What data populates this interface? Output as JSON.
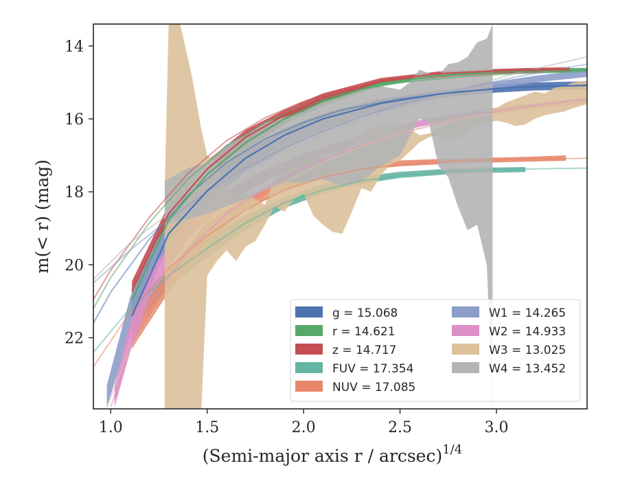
{
  "chart_data": {
    "type": "line",
    "xlabel": "(Semi-major axis r / arcsec)",
    "xlabel_superscript": "1/4",
    "ylabel": "m(< r) (mag)",
    "xlim": [
      0.91,
      3.47
    ],
    "ylim": [
      23.95,
      13.4
    ],
    "y_inverted": true,
    "x_ticks": [
      1.0,
      1.5,
      2.0,
      2.5,
      3.0
    ],
    "x_tick_labels": [
      "1.0",
      "1.5",
      "2.0",
      "2.5",
      "3.0"
    ],
    "y_ticks": [
      14,
      16,
      18,
      20,
      22
    ],
    "y_tick_labels": [
      "14",
      "16",
      "18",
      "20",
      "22"
    ],
    "grid": false,
    "legend": {
      "placement": "lower-right",
      "columns": 2
    },
    "series": [
      {
        "name": "g",
        "legend": "g = 15.068",
        "color": "#4c72b0",
        "fit": [
          [
            0.91,
            21.6
          ],
          [
            1.0,
            20.75
          ],
          [
            1.2,
            19.3
          ],
          [
            1.4,
            18.1
          ],
          [
            1.6,
            17.2
          ],
          [
            1.8,
            16.55
          ],
          [
            2.0,
            16.1
          ],
          [
            2.2,
            15.75
          ],
          [
            2.5,
            15.45
          ],
          [
            2.8,
            15.25
          ],
          [
            3.1,
            15.15
          ],
          [
            3.47,
            15.07
          ]
        ],
        "band": [
          [
            1.11,
            21.7,
            21.1
          ],
          [
            1.3,
            19.45,
            18.85
          ],
          [
            1.5,
            18.25,
            17.7
          ],
          [
            1.7,
            17.3,
            16.85
          ],
          [
            1.9,
            16.65,
            16.25
          ],
          [
            2.1,
            16.15,
            15.85
          ],
          [
            2.4,
            15.7,
            15.45
          ],
          [
            2.7,
            15.42,
            15.22
          ],
          [
            3.0,
            15.28,
            15.05
          ],
          [
            3.2,
            15.22,
            15.0
          ],
          [
            3.47,
            15.2,
            14.97
          ]
        ]
      },
      {
        "name": "r",
        "legend": "r = 14.621",
        "color": "#55a868",
        "fit": [
          [
            0.91,
            21.2
          ],
          [
            1.0,
            20.35
          ],
          [
            1.2,
            18.85
          ],
          [
            1.4,
            17.65
          ],
          [
            1.6,
            16.75
          ],
          [
            1.8,
            16.1
          ],
          [
            2.0,
            15.65
          ],
          [
            2.2,
            15.3
          ],
          [
            2.5,
            15.0
          ],
          [
            2.8,
            14.85
          ],
          [
            3.1,
            14.76
          ],
          [
            3.47,
            14.7
          ]
        ],
        "band": [
          [
            1.11,
            21.25,
            20.7
          ],
          [
            1.3,
            19.05,
            18.5
          ],
          [
            1.5,
            17.75,
            17.3
          ],
          [
            1.7,
            16.85,
            16.45
          ],
          [
            1.9,
            16.15,
            15.85
          ],
          [
            2.1,
            15.65,
            15.4
          ],
          [
            2.4,
            15.1,
            14.95
          ],
          [
            2.7,
            14.88,
            14.75
          ],
          [
            3.0,
            14.77,
            14.65
          ],
          [
            3.2,
            14.74,
            14.62
          ],
          [
            3.47,
            14.72,
            14.6
          ]
        ]
      },
      {
        "name": "z",
        "legend": "z = 14.717",
        "color": "#c44e52",
        "fit": [
          [
            0.91,
            20.95
          ],
          [
            1.0,
            20.15
          ],
          [
            1.2,
            18.7
          ],
          [
            1.4,
            17.5
          ],
          [
            1.6,
            16.6
          ],
          [
            1.8,
            15.97
          ],
          [
            2.0,
            15.52
          ],
          [
            2.2,
            15.2
          ],
          [
            2.5,
            14.93
          ],
          [
            2.8,
            14.8
          ],
          [
            3.1,
            14.73
          ],
          [
            3.38,
            14.67
          ]
        ],
        "band": [
          [
            1.11,
            21.0,
            20.45
          ],
          [
            1.3,
            18.85,
            18.35
          ],
          [
            1.5,
            17.6,
            17.15
          ],
          [
            1.7,
            16.7,
            16.3
          ],
          [
            1.9,
            16.05,
            15.75
          ],
          [
            2.1,
            15.55,
            15.3
          ],
          [
            2.4,
            15.02,
            14.88
          ],
          [
            2.7,
            14.82,
            14.7
          ],
          [
            3.0,
            14.74,
            14.63
          ],
          [
            3.2,
            14.71,
            14.6
          ],
          [
            3.38,
            14.7,
            14.58
          ]
        ]
      },
      {
        "name": "FUV",
        "legend": "FUV = 17.354",
        "color": "#64b5a1",
        "fit": [
          [
            0.91,
            22.4
          ],
          [
            1.1,
            21.2
          ],
          [
            1.3,
            20.3
          ],
          [
            1.5,
            19.55
          ],
          [
            1.7,
            18.85
          ],
          [
            1.9,
            18.3
          ],
          [
            2.1,
            17.95
          ],
          [
            2.3,
            17.7
          ],
          [
            2.5,
            17.55
          ],
          [
            2.8,
            17.43
          ],
          [
            3.1,
            17.38
          ],
          [
            3.47,
            17.35
          ]
        ],
        "band": [
          [
            1.11,
            21.8,
            21.1
          ],
          [
            1.3,
            20.6,
            20.1
          ],
          [
            1.5,
            19.8,
            19.3
          ],
          [
            1.7,
            19.05,
            18.65
          ],
          [
            1.9,
            18.45,
            18.15
          ],
          [
            2.1,
            18.05,
            17.8
          ],
          [
            2.3,
            17.78,
            17.58
          ],
          [
            2.5,
            17.62,
            17.45
          ],
          [
            2.8,
            17.5,
            17.35
          ],
          [
            3.15,
            17.46,
            17.32
          ]
        ]
      },
      {
        "name": "NUV",
        "legend": "NUV = 17.085",
        "color": "#e8866a",
        "fit": [
          [
            0.91,
            22.8
          ],
          [
            1.1,
            21.3
          ],
          [
            1.3,
            20.1
          ],
          [
            1.5,
            19.2
          ],
          [
            1.7,
            18.5
          ],
          [
            1.9,
            17.95
          ],
          [
            2.1,
            17.6
          ],
          [
            2.3,
            17.38
          ],
          [
            2.5,
            17.25
          ],
          [
            2.8,
            17.15
          ],
          [
            3.1,
            17.1
          ],
          [
            3.47,
            17.08
          ]
        ],
        "band": [
          [
            1.11,
            22.3,
            21.6
          ],
          [
            1.3,
            20.75,
            20.15
          ],
          [
            1.5,
            19.35,
            18.85
          ],
          [
            1.7,
            18.5,
            18.15
          ],
          [
            1.9,
            17.95,
            17.7
          ],
          [
            2.1,
            17.6,
            17.4
          ],
          [
            2.3,
            17.4,
            17.22
          ],
          [
            2.5,
            17.3,
            17.14
          ],
          [
            2.8,
            17.22,
            17.08
          ],
          [
            3.1,
            17.18,
            17.05
          ],
          [
            3.36,
            17.15,
            17.0
          ]
        ]
      },
      {
        "name": "W1",
        "legend": "W1 = 14.265",
        "color": "#8c9dc8",
        "fit": [
          [
            0.91,
            20.5
          ],
          [
            1.1,
            19.6
          ],
          [
            1.3,
            18.75
          ],
          [
            1.5,
            18.0
          ],
          [
            1.7,
            17.35
          ],
          [
            1.9,
            16.8
          ],
          [
            2.1,
            16.35
          ],
          [
            2.3,
            15.95
          ],
          [
            2.5,
            15.6
          ],
          [
            2.8,
            15.2
          ],
          [
            3.1,
            14.85
          ],
          [
            3.47,
            14.5
          ]
        ],
        "band": [
          [
            0.98,
            23.9,
            23.3
          ],
          [
            1.1,
            21.9,
            20.9
          ],
          [
            1.2,
            20.55,
            19.65
          ],
          [
            1.3,
            19.55,
            18.85
          ],
          [
            1.5,
            18.35,
            17.8
          ],
          [
            1.7,
            17.45,
            17.05
          ],
          [
            2.0,
            16.55,
            16.2
          ],
          [
            2.3,
            15.95,
            15.7
          ],
          [
            2.6,
            15.55,
            15.35
          ],
          [
            2.9,
            15.25,
            15.05
          ],
          [
            3.2,
            15.0,
            14.82
          ],
          [
            3.47,
            14.85,
            14.65
          ]
        ]
      },
      {
        "name": "W2",
        "legend": "W2 = 14.933",
        "color": "#dd8fc6",
        "fit": [
          [
            1.0,
            23.9
          ],
          [
            1.1,
            22.3
          ],
          [
            1.2,
            21.1
          ],
          [
            1.4,
            19.6
          ],
          [
            1.6,
            18.6
          ],
          [
            1.8,
            17.9
          ],
          [
            2.0,
            17.35
          ],
          [
            2.2,
            16.9
          ],
          [
            2.5,
            16.4
          ],
          [
            2.8,
            16.0
          ],
          [
            3.1,
            15.7
          ],
          [
            3.47,
            15.45
          ]
        ],
        "band": [
          [
            1.02,
            23.9,
            23.3
          ],
          [
            1.1,
            22.4,
            21.6
          ],
          [
            1.2,
            20.9,
            20.2
          ],
          [
            1.4,
            19.3,
            18.8
          ],
          [
            1.6,
            18.3,
            17.95
          ],
          [
            1.8,
            17.7,
            17.4
          ],
          [
            2.0,
            17.2,
            16.95
          ],
          [
            2.3,
            16.65,
            16.45
          ],
          [
            2.6,
            16.22,
            16.04
          ],
          [
            2.9,
            15.92,
            15.76
          ],
          [
            3.2,
            15.72,
            15.56
          ],
          [
            3.47,
            15.58,
            15.42
          ]
        ]
      },
      {
        "name": "W3",
        "legend": "W3 = 13.025",
        "color": "#dcc19b",
        "fit": [
          [
            0.98,
            23.9
          ],
          [
            1.1,
            22.3
          ],
          [
            1.3,
            20.65
          ],
          [
            1.5,
            19.4
          ],
          [
            1.7,
            18.5
          ],
          [
            1.9,
            17.75
          ],
          [
            2.1,
            17.2
          ],
          [
            2.3,
            16.75
          ],
          [
            2.5,
            16.4
          ],
          [
            2.8,
            16.0
          ],
          [
            3.1,
            15.75
          ],
          [
            3.47,
            15.5
          ]
        ],
        "band": [
          [
            1.28,
            23.95,
            17.9
          ],
          [
            1.3,
            23.95,
            13.4
          ],
          [
            1.36,
            23.95,
            13.4
          ],
          [
            1.42,
            23.95,
            14.8
          ],
          [
            1.47,
            23.95,
            16.3
          ],
          [
            1.5,
            20.3,
            17.0
          ],
          [
            1.55,
            19.9,
            17.2
          ],
          [
            1.6,
            19.6,
            18.0
          ],
          [
            1.65,
            19.9,
            18.1
          ],
          [
            1.7,
            19.5,
            18.05
          ],
          [
            1.75,
            19.35,
            18.2
          ],
          [
            1.8,
            18.9,
            18.35
          ],
          [
            1.85,
            18.4,
            17.65
          ],
          [
            1.9,
            18.55,
            17.45
          ],
          [
            1.95,
            18.2,
            17.35
          ],
          [
            2.0,
            18.05,
            17.2
          ],
          [
            2.05,
            18.65,
            17.1
          ],
          [
            2.1,
            18.9,
            17.05
          ],
          [
            2.15,
            19.1,
            17.15
          ],
          [
            2.2,
            19.15,
            16.8
          ],
          [
            2.25,
            18.55,
            16.85
          ],
          [
            2.3,
            17.9,
            16.4
          ],
          [
            2.35,
            18.0,
            16.25
          ],
          [
            2.4,
            17.55,
            16.1
          ],
          [
            2.45,
            17.25,
            16.15
          ],
          [
            2.5,
            17.15,
            16.2
          ],
          [
            2.55,
            16.9,
            16.25
          ],
          [
            2.6,
            16.65,
            16.45
          ],
          [
            2.65,
            16.5,
            16.4
          ],
          [
            2.7,
            16.45,
            16.25
          ],
          [
            2.75,
            16.6,
            16.15
          ],
          [
            2.8,
            16.55,
            16.0
          ],
          [
            2.85,
            16.3,
            15.85
          ],
          [
            2.9,
            16.2,
            15.9
          ],
          [
            2.95,
            16.1,
            15.75
          ],
          [
            3.0,
            16.05,
            15.7
          ],
          [
            3.05,
            16.1,
            15.55
          ],
          [
            3.1,
            16.2,
            15.45
          ],
          [
            3.15,
            16.15,
            15.35
          ],
          [
            3.2,
            16.0,
            15.25
          ],
          [
            3.25,
            15.9,
            15.3
          ],
          [
            3.3,
            15.85,
            15.15
          ],
          [
            3.35,
            15.8,
            15.1
          ],
          [
            3.4,
            15.7,
            15.0
          ],
          [
            3.47,
            15.6,
            14.95
          ]
        ]
      },
      {
        "name": "W4",
        "legend": "W4 = 13.452",
        "color": "#b4b4b4",
        "fit": [
          [
            0.91,
            20.4
          ],
          [
            1.1,
            19.4
          ],
          [
            1.3,
            18.6
          ],
          [
            1.5,
            17.95
          ],
          [
            1.7,
            17.4
          ],
          [
            1.9,
            16.9
          ],
          [
            2.1,
            16.45
          ],
          [
            2.3,
            16.05
          ],
          [
            2.5,
            15.7
          ],
          [
            2.8,
            15.2
          ],
          [
            3.1,
            14.75
          ],
          [
            3.47,
            14.3
          ]
        ],
        "band": [
          [
            1.28,
            18.9,
            17.7
          ],
          [
            1.4,
            18.75,
            17.35
          ],
          [
            1.5,
            18.6,
            17.2
          ],
          [
            1.6,
            18.4,
            16.7
          ],
          [
            1.7,
            18.2,
            16.45
          ],
          [
            1.8,
            17.95,
            16.1
          ],
          [
            1.9,
            17.75,
            15.95
          ],
          [
            2.0,
            17.75,
            15.8
          ],
          [
            2.1,
            17.65,
            15.5
          ],
          [
            2.2,
            17.85,
            15.35
          ],
          [
            2.3,
            17.7,
            15.2
          ],
          [
            2.4,
            17.3,
            15.1
          ],
          [
            2.5,
            17.0,
            15.2
          ],
          [
            2.55,
            16.5,
            15.0
          ],
          [
            2.6,
            16.0,
            14.65
          ],
          [
            2.65,
            16.1,
            14.75
          ],
          [
            2.7,
            17.3,
            14.8
          ],
          [
            2.75,
            17.6,
            14.5
          ],
          [
            2.8,
            18.4,
            14.45
          ],
          [
            2.85,
            19.05,
            14.3
          ],
          [
            2.9,
            18.9,
            13.9
          ],
          [
            2.95,
            20.0,
            13.8
          ],
          [
            2.98,
            23.95,
            13.4
          ]
        ]
      }
    ]
  }
}
